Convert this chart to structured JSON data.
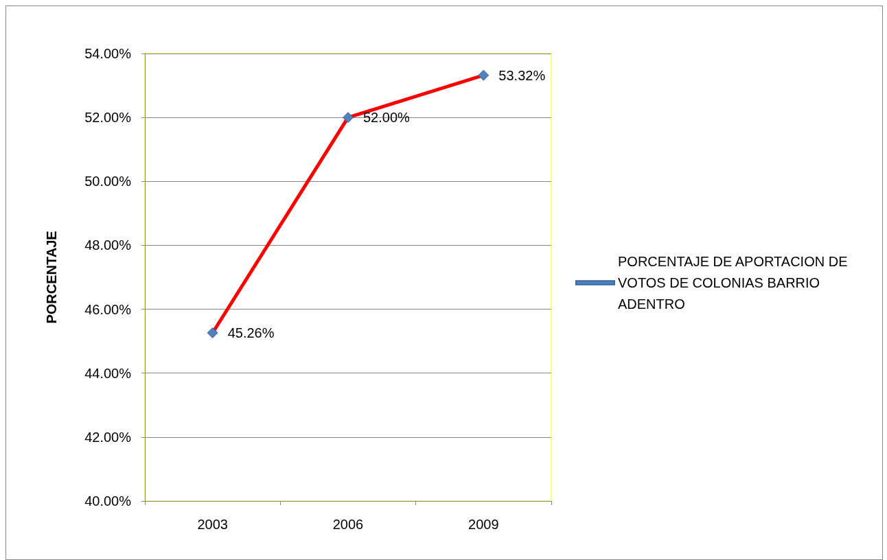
{
  "chart_data": {
    "type": "line",
    "ylabel": "PORCENTAJE",
    "categories": [
      "2003",
      "2006",
      "2009"
    ],
    "series": [
      {
        "name": "PORCENTAJE DE APORTACION DE VOTOS DE COLONIAS BARRIO ADENTRO",
        "color": "#ff0000",
        "values": [
          45.26,
          52.0,
          53.32
        ]
      }
    ],
    "value_labels": [
      "45.26%",
      "52.00%",
      "53.32%"
    ],
    "ylim": [
      40,
      54
    ],
    "yticks": [
      {
        "value": 40,
        "label": "40.00%"
      },
      {
        "value": 42,
        "label": "42.00%"
      },
      {
        "value": 44,
        "label": "44.00%"
      },
      {
        "value": 46,
        "label": "46.00%"
      },
      {
        "value": 48,
        "label": "48.00%"
      },
      {
        "value": 50,
        "label": "50.00%"
      },
      {
        "value": 52,
        "label": "52.00%"
      },
      {
        "value": 54,
        "label": "54.00%"
      }
    ],
    "grid": "y",
    "legend": "right",
    "marker": "diamond",
    "line_style": "solid"
  }
}
